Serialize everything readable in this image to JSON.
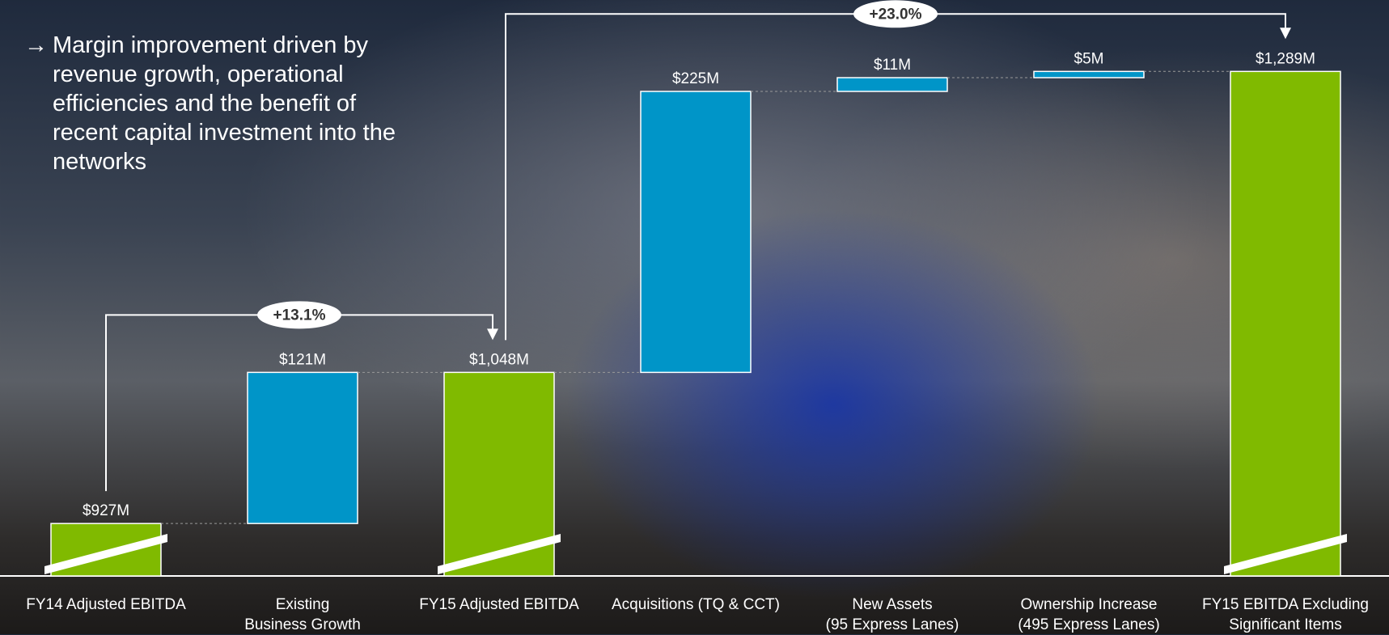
{
  "chart_data": {
    "type": "waterfall",
    "note": {
      "bullet": "→",
      "text": "Margin improvement driven by revenue growth, operational efficiencies and the benefit of recent capital investment into the networks"
    },
    "categories": [
      "FY14 Adjusted EBITDA",
      "Existing\nBusiness Growth",
      "FY15 Adjusted EBITDA",
      "Acquisitions (TQ & CCT)",
      "New Assets\n(95 Express Lanes)",
      "Ownership Increase\n(495 Express Lanes)",
      "FY15 EBITDA Excluding\nSignificant Items"
    ],
    "values": [
      927,
      121,
      1048,
      225,
      11,
      5,
      1289
    ],
    "value_labels": [
      "$927M",
      "$121M",
      "$1,048M",
      "$225M",
      "$11M",
      "$5M",
      "$1,289M"
    ],
    "kinds": [
      "total",
      "increase",
      "total",
      "increase",
      "increase",
      "increase",
      "total"
    ],
    "total_color": "#80ba00",
    "increase_color": "#0095c8",
    "ylim": [
      885,
      1330
    ],
    "annotations": [
      "+13.1%",
      "+23.0%"
    ]
  }
}
